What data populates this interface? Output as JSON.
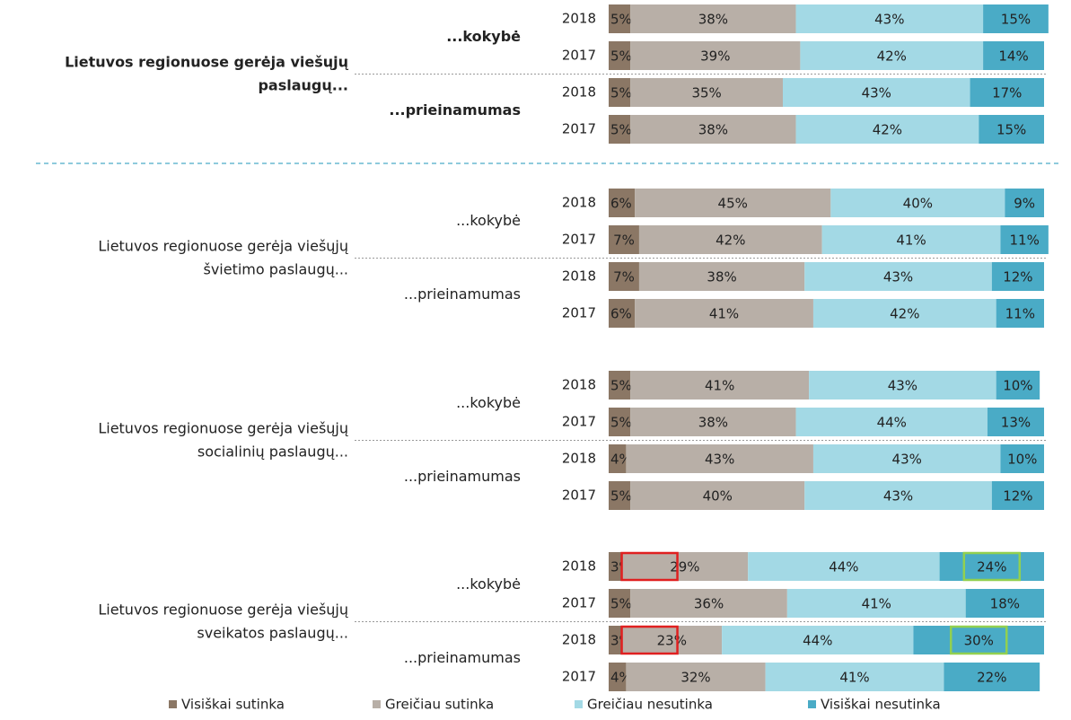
{
  "chart_data": {
    "type": "bar",
    "orientation": "horizontal",
    "stacked": true,
    "categories": [
      "2018",
      "2017",
      "2018",
      "2017",
      "2018",
      "2017",
      "2018",
      "2017",
      "2018",
      "2017",
      "2018",
      "2017",
      "2018",
      "2017",
      "2018",
      "2017"
    ],
    "groups": [
      {
        "label": [
          "Lietuvos regionuose gerėja viešųjų",
          "paslaugų..."
        ],
        "subgroups": [
          "...kokybė",
          "...prieinamumas"
        ]
      },
      {
        "label": [
          "Lietuvos regionuose gerėja viešųjų",
          "švietimo paslaugų..."
        ],
        "subgroups": [
          "...kokybė",
          "...prieinamumas"
        ]
      },
      {
        "label": [
          "Lietuvos regionuose gerėja viešųjų",
          "socialinių paslaugų..."
        ],
        "subgroups": [
          "...kokybė",
          "...prieinamumas"
        ]
      },
      {
        "label": [
          "Lietuvos regionuose gerėja viešųjų",
          "sveikatos paslaugų..."
        ],
        "subgroups": [
          "...kokybė",
          "...prieinamumas"
        ]
      }
    ],
    "series": [
      {
        "name": "Visiškai sutinka",
        "color": "#8b7765",
        "values": [
          5,
          5,
          5,
          5,
          6,
          7,
          7,
          6,
          5,
          5,
          4,
          5,
          3,
          5,
          3,
          4
        ],
        "value_labels": [
          "5%",
          "5%",
          "5%",
          "5%",
          "6%",
          "7%",
          "7%",
          "6%",
          "5%",
          "5%",
          "4%",
          "5%",
          "3%",
          "5%",
          "3%",
          "4%"
        ]
      },
      {
        "name": "Greičiau sutinka",
        "color": "#b8afa7",
        "values": [
          38,
          39,
          35,
          38,
          45,
          42,
          38,
          41,
          41,
          38,
          43,
          40,
          29,
          36,
          23,
          32
        ],
        "value_labels": [
          "38%",
          "39%",
          "35%",
          "38%",
          "45%",
          "42%",
          "38%",
          "41%",
          "41%",
          "38%",
          "43%",
          "40%",
          "29%",
          "36%",
          "23%",
          "32%"
        ]
      },
      {
        "name": "Greičiau nesutinka",
        "color": "#a3d9e5",
        "values": [
          43,
          42,
          43,
          42,
          40,
          41,
          43,
          42,
          43,
          44,
          43,
          43,
          44,
          41,
          44,
          41
        ],
        "value_labels": [
          "43%",
          "42%",
          "43%",
          "42%",
          "40%",
          "41%",
          "43%",
          "42%",
          "43%",
          "44%",
          "43%",
          "43%",
          "44%",
          "41%",
          "44%",
          "41%"
        ]
      },
      {
        "name": "Visiškai nesutinka",
        "color": "#4aabc6",
        "values": [
          15,
          14,
          17,
          15,
          9,
          11,
          12,
          11,
          10,
          13,
          10,
          12,
          24,
          18,
          30,
          22
        ],
        "value_labels": [
          "15%",
          "14%",
          "17%",
          "15%",
          "9%",
          "11%",
          "12%",
          "11%",
          "10%",
          "13%",
          "10%",
          "12%",
          "24%",
          "18%",
          "30%",
          "22%"
        ]
      }
    ],
    "highlights": [
      {
        "series": 1,
        "index": 12,
        "color": "#e02020"
      },
      {
        "series": 1,
        "index": 14,
        "color": "#e02020"
      },
      {
        "series": 3,
        "index": 12,
        "color": "#92d050"
      },
      {
        "series": 3,
        "index": 14,
        "color": "#92d050"
      }
    ]
  }
}
